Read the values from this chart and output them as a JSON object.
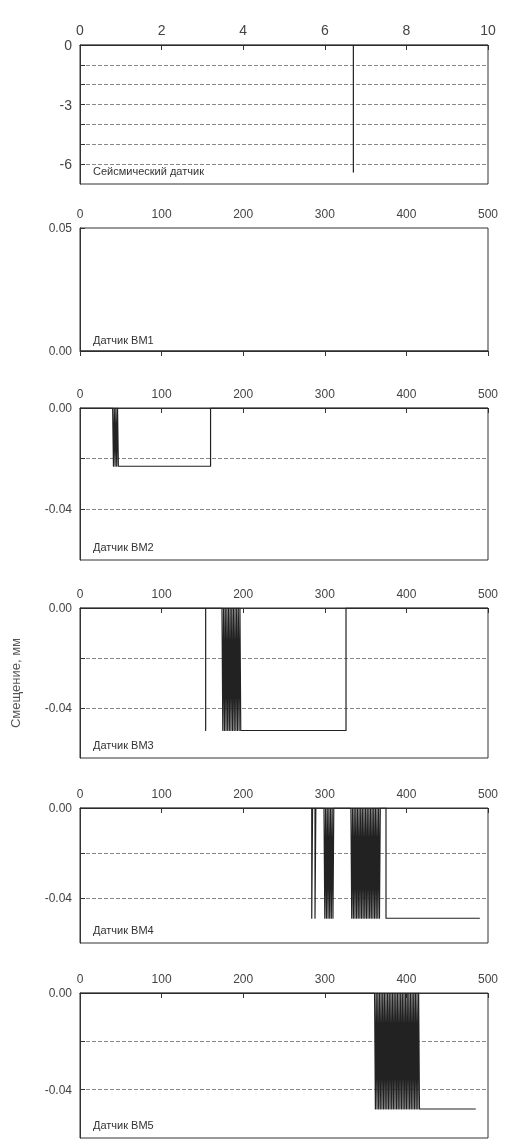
{
  "chart_data": [
    {
      "type": "line",
      "title": "Сейсмический датчик",
      "xlim": [
        0,
        10
      ],
      "xticks": [
        0,
        2,
        4,
        6,
        8,
        10
      ],
      "ylim": [
        -7,
        0
      ],
      "yticks": [
        0,
        {
          "value": -1,
          "label": null
        },
        {
          "value": -2,
          "label": null
        },
        -3,
        {
          "value": -4,
          "label": null
        },
        {
          "value": -5,
          "label": null
        },
        -6
      ],
      "grid": "y",
      "marker": "none",
      "series": [
        {
          "color": "#222222",
          "x": [
            0,
            6.7,
            6.7,
            6.7,
            10
          ],
          "values": [
            0,
            0,
            -6.4,
            0,
            0
          ]
        }
      ]
    },
    {
      "type": "line",
      "title": "Датчик ВМ1",
      "xlim": [
        0,
        500
      ],
      "xticks": [
        0,
        100,
        200,
        300,
        400,
        500
      ],
      "ylim": [
        0,
        0.05
      ],
      "yticks": [
        {
          "value": 0,
          "label": "0.00"
        },
        0.05
      ],
      "grid": false,
      "marker": "none",
      "series": [
        {
          "color": "#222222",
          "x": [
            0,
            500
          ],
          "values": [
            0,
            0
          ]
        }
      ]
    },
    {
      "type": "line",
      "title": "Датчик ВМ2",
      "xlim": [
        0,
        500
      ],
      "xticks": [
        0,
        100,
        200,
        300,
        400,
        500
      ],
      "ylim": [
        -0.06,
        0
      ],
      "yticks": [
        {
          "value": 0,
          "label": "0.00"
        },
        {
          "value": -0.02,
          "label": null
        },
        -0.04
      ],
      "grid": "y",
      "marker": "none",
      "series": [
        {
          "color": "#222222",
          "x": [
            0,
            40,
            41,
            42,
            43,
            44,
            45,
            46,
            47,
            160,
            160,
            500
          ],
          "values": [
            0,
            0,
            -0.023,
            0,
            -0.023,
            0,
            -0.023,
            0,
            -0.023,
            -0.023,
            0,
            0
          ]
        }
      ]
    },
    {
      "type": "line",
      "title": "Датчик ВМ3",
      "ylabel": "Смещение, мм",
      "xlim": [
        0,
        500
      ],
      "xticks": [
        0,
        100,
        200,
        300,
        400,
        500
      ],
      "ylim": [
        -0.06,
        0
      ],
      "yticks": [
        {
          "value": 0,
          "label": "0.00"
        },
        {
          "value": -0.02,
          "label": null
        },
        -0.04
      ],
      "grid": "y",
      "marker": "none",
      "series": [
        {
          "color": "#222222",
          "x": [
            0,
            154,
            154,
            154,
            174,
            175,
            176,
            177,
            178,
            179,
            180,
            181,
            182,
            183,
            184,
            185,
            186,
            187,
            188,
            189,
            190,
            191,
            192,
            193,
            194,
            195,
            196,
            197,
            326,
            326,
            500
          ],
          "values": [
            0,
            0,
            -0.049,
            0,
            0,
            -0.049,
            0,
            -0.049,
            0,
            -0.049,
            0,
            -0.049,
            0,
            -0.049,
            0,
            -0.049,
            0,
            -0.049,
            0,
            -0.049,
            0,
            -0.049,
            0,
            -0.049,
            0,
            -0.049,
            0,
            -0.049,
            -0.049,
            0,
            0
          ]
        }
      ]
    },
    {
      "type": "line",
      "title": "Датчик ВМ4",
      "xlim": [
        0,
        500
      ],
      "xticks": [
        0,
        100,
        200,
        300,
        400,
        500
      ],
      "ylim": [
        -0.06,
        0
      ],
      "yticks": [
        {
          "value": 0,
          "label": "0.00"
        },
        {
          "value": -0.02,
          "label": null
        },
        -0.04
      ],
      "grid": "y",
      "marker": "none",
      "series": [
        {
          "color": "#222222",
          "x": [
            0,
            284,
            284,
            285,
            288,
            288,
            289,
            299,
            300,
            301,
            302,
            303,
            304,
            305,
            306,
            307,
            308,
            309,
            310,
            311,
            312,
            332,
            333,
            334,
            335,
            336,
            337,
            338,
            339,
            340,
            341,
            342,
            343,
            344,
            345,
            346,
            347,
            348,
            349,
            350,
            351,
            352,
            353,
            354,
            355,
            356,
            357,
            358,
            359,
            360,
            361,
            362,
            363,
            364,
            365,
            366,
            367,
            368,
            375,
            375,
            490
          ],
          "values": [
            0,
            0,
            -0.049,
            0,
            0,
            -0.049,
            0,
            0,
            -0.049,
            0,
            -0.049,
            0,
            -0.049,
            0,
            -0.049,
            0,
            -0.049,
            0,
            -0.049,
            0,
            0,
            0,
            -0.049,
            0,
            -0.049,
            0,
            -0.049,
            0,
            -0.049,
            0,
            -0.049,
            0,
            -0.049,
            0,
            -0.049,
            0,
            -0.049,
            0,
            -0.049,
            0,
            -0.049,
            0,
            -0.049,
            0,
            -0.049,
            0,
            -0.049,
            0,
            -0.049,
            0,
            -0.049,
            0,
            -0.049,
            0,
            -0.049,
            0,
            -0.049,
            0,
            0,
            -0.049,
            -0.049
          ]
        }
      ]
    },
    {
      "type": "line",
      "title": "Датчик ВМ5",
      "xlim": [
        0,
        500
      ],
      "xticks": [
        0,
        100,
        200,
        300,
        400,
        500
      ],
      "ylim": [
        -0.06,
        0
      ],
      "yticks": [
        {
          "value": 0,
          "label": "0.00"
        },
        {
          "value": -0.02,
          "label": null
        },
        -0.04
      ],
      "grid": "y",
      "marker": "none",
      "series": [
        {
          "color": "#222222",
          "x": [
            0,
            361,
            362,
            363,
            364,
            365,
            366,
            367,
            368,
            369,
            370,
            371,
            372,
            373,
            374,
            375,
            376,
            377,
            378,
            379,
            380,
            381,
            382,
            383,
            384,
            385,
            386,
            387,
            388,
            389,
            390,
            391,
            392,
            393,
            394,
            395,
            396,
            397,
            398,
            399,
            400,
            401,
            402,
            403,
            404,
            405,
            406,
            407,
            408,
            409,
            410,
            411,
            412,
            413,
            414,
            415,
            416,
            485
          ],
          "values": [
            0,
            0,
            -0.048,
            0,
            -0.048,
            0,
            -0.048,
            0,
            -0.048,
            0,
            -0.048,
            0,
            -0.048,
            0,
            -0.048,
            0,
            -0.048,
            0,
            -0.048,
            0,
            -0.048,
            0,
            -0.048,
            0,
            -0.048,
            0,
            -0.048,
            0,
            -0.048,
            0,
            -0.048,
            0,
            -0.048,
            0,
            -0.048,
            0,
            -0.048,
            0,
            -0.048,
            0,
            -0.048,
            0,
            -0.048,
            0,
            -0.048,
            0,
            -0.048,
            0,
            -0.048,
            0,
            -0.048,
            0,
            -0.048,
            0,
            -0.048,
            0,
            -0.048,
            -0.048
          ]
        }
      ]
    }
  ]
}
